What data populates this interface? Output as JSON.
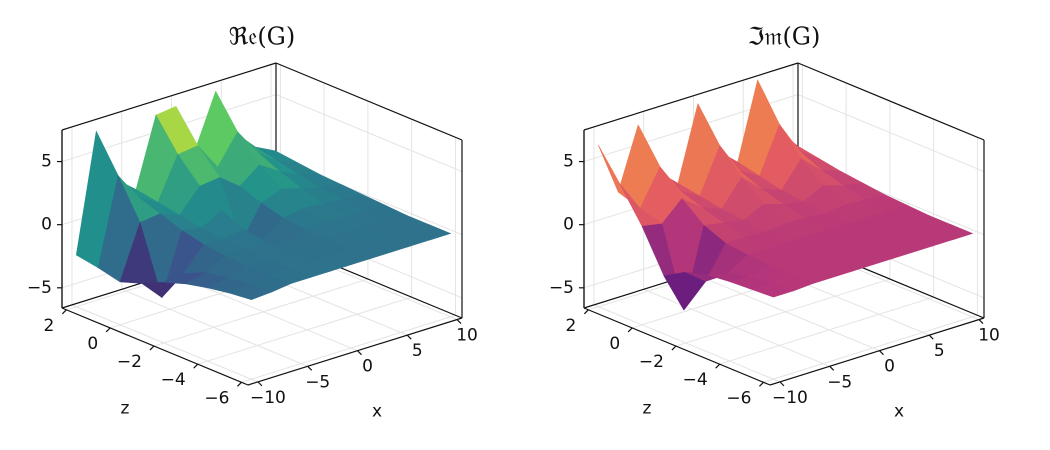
{
  "chart_data": [
    {
      "type": "surface",
      "title": "ℜ𝔢(G)",
      "x_label": "x",
      "z_label": "z",
      "colormap": "viridis",
      "grid": true,
      "x": [
        -10,
        -8,
        -6,
        -4,
        -2,
        0,
        2,
        4,
        6,
        8,
        10
      ],
      "z": [
        2,
        1,
        0,
        -1,
        -2,
        -3,
        -4,
        -5,
        -6
      ],
      "values": [
        [
          -2.5,
          6.8,
          2.5,
          1.2,
          6.6,
          6.8,
          3.0,
          7.0,
          3.2,
          1.6,
          0.8
        ],
        [
          -2.8,
          4.0,
          1.8,
          0.9,
          4.2,
          4.4,
          2.2,
          4.5,
          2.4,
          1.2,
          0.6
        ],
        [
          -3.2,
          1.0,
          1.2,
          0.6,
          2.4,
          2.6,
          1.4,
          2.6,
          1.6,
          0.8,
          0.4
        ],
        [
          -2.6,
          -4.2,
          0.6,
          0.3,
          1.2,
          -1.8,
          0.8,
          1.4,
          1.0,
          0.5,
          0.3
        ],
        [
          -1.8,
          -1.6,
          0.2,
          0.1,
          0.4,
          -0.8,
          0.3,
          0.6,
          0.5,
          0.3,
          0.2
        ],
        [
          -1.2,
          -0.8,
          0.0,
          0.0,
          0.1,
          -0.3,
          0.1,
          0.2,
          0.2,
          0.1,
          0.1
        ],
        [
          -0.8,
          -0.5,
          -0.1,
          0.0,
          0.0,
          -0.1,
          0.0,
          0.1,
          0.1,
          0.0,
          0.0
        ],
        [
          -0.5,
          -0.3,
          -0.1,
          0.0,
          0.0,
          0.0,
          0.0,
          0.0,
          0.0,
          0.0,
          0.0
        ],
        [
          -0.3,
          -0.2,
          0.0,
          0.0,
          0.0,
          0.0,
          0.0,
          0.0,
          0.0,
          0.0,
          0.0
        ]
      ],
      "xlim": [
        -11,
        10.5
      ],
      "zlim": [
        -6.3,
        2.2
      ],
      "ylim": [
        -6.6,
        7.5
      ],
      "xticks": [
        {
          "value": -10,
          "label": "−10"
        },
        {
          "value": -5,
          "label": "−5"
        },
        0,
        5,
        10
      ],
      "zticks": [
        {
          "value": -6,
          "label": "−6"
        },
        {
          "value": -4,
          "label": "−4"
        },
        {
          "value": -2,
          "label": "−2"
        },
        0,
        2
      ],
      "yticks": [
        {
          "value": -5,
          "label": "−5"
        },
        0,
        5
      ]
    },
    {
      "type": "surface",
      "title": "ℑ𝔪(G)",
      "x_label": "x",
      "z_label": "z",
      "colormap": "magma",
      "grid": true,
      "x": [
        -10,
        -8,
        -6,
        -4,
        -2,
        0,
        2,
        4,
        6,
        8,
        10
      ],
      "z": [
        2,
        1,
        0,
        -1,
        -2,
        -3,
        -4,
        -5,
        -6
      ],
      "values": [
        [
          6.2,
          2.0,
          6.8,
          2.6,
          1.2,
          7.0,
          2.8,
          1.4,
          7.4,
          3.0,
          1.2
        ],
        [
          3.8,
          1.4,
          4.2,
          1.8,
          0.9,
          4.4,
          1.9,
          1.0,
          4.6,
          2.0,
          0.9
        ],
        [
          1.2,
          0.9,
          2.4,
          1.2,
          0.6,
          2.6,
          1.2,
          0.6,
          2.6,
          1.2,
          0.6
        ],
        [
          -2.0,
          -5.2,
          1.0,
          0.7,
          0.4,
          1.2,
          0.7,
          0.4,
          1.2,
          0.7,
          0.4
        ],
        [
          -1.0,
          -2.2,
          0.3,
          0.3,
          0.2,
          0.4,
          0.3,
          0.2,
          0.4,
          0.3,
          0.2
        ],
        [
          -0.5,
          -0.9,
          0.1,
          0.1,
          0.1,
          0.1,
          0.1,
          0.1,
          0.1,
          0.1,
          0.1
        ],
        [
          -0.3,
          -0.4,
          0.0,
          0.0,
          0.0,
          0.0,
          0.0,
          0.0,
          0.0,
          0.0,
          0.0
        ],
        [
          -0.2,
          -0.2,
          0.0,
          0.0,
          0.0,
          0.0,
          0.0,
          0.0,
          0.0,
          0.0,
          0.0
        ],
        [
          -0.1,
          -0.1,
          0.0,
          0.0,
          0.0,
          0.0,
          0.0,
          0.0,
          0.0,
          0.0,
          0.0
        ]
      ],
      "xlim": [
        -11,
        10.5
      ],
      "zlim": [
        -6.3,
        2.2
      ],
      "ylim": [
        -6.6,
        7.5
      ],
      "xticks": [
        {
          "value": -10,
          "label": "−10"
        },
        {
          "value": -5,
          "label": "−5"
        },
        0,
        5,
        10
      ],
      "zticks": [
        {
          "value": -6,
          "label": "−6"
        },
        {
          "value": -4,
          "label": "−4"
        },
        {
          "value": -2,
          "label": "−2"
        },
        0,
        2
      ],
      "yticks": [
        {
          "value": -5,
          "label": "−5"
        },
        0,
        5
      ]
    }
  ]
}
